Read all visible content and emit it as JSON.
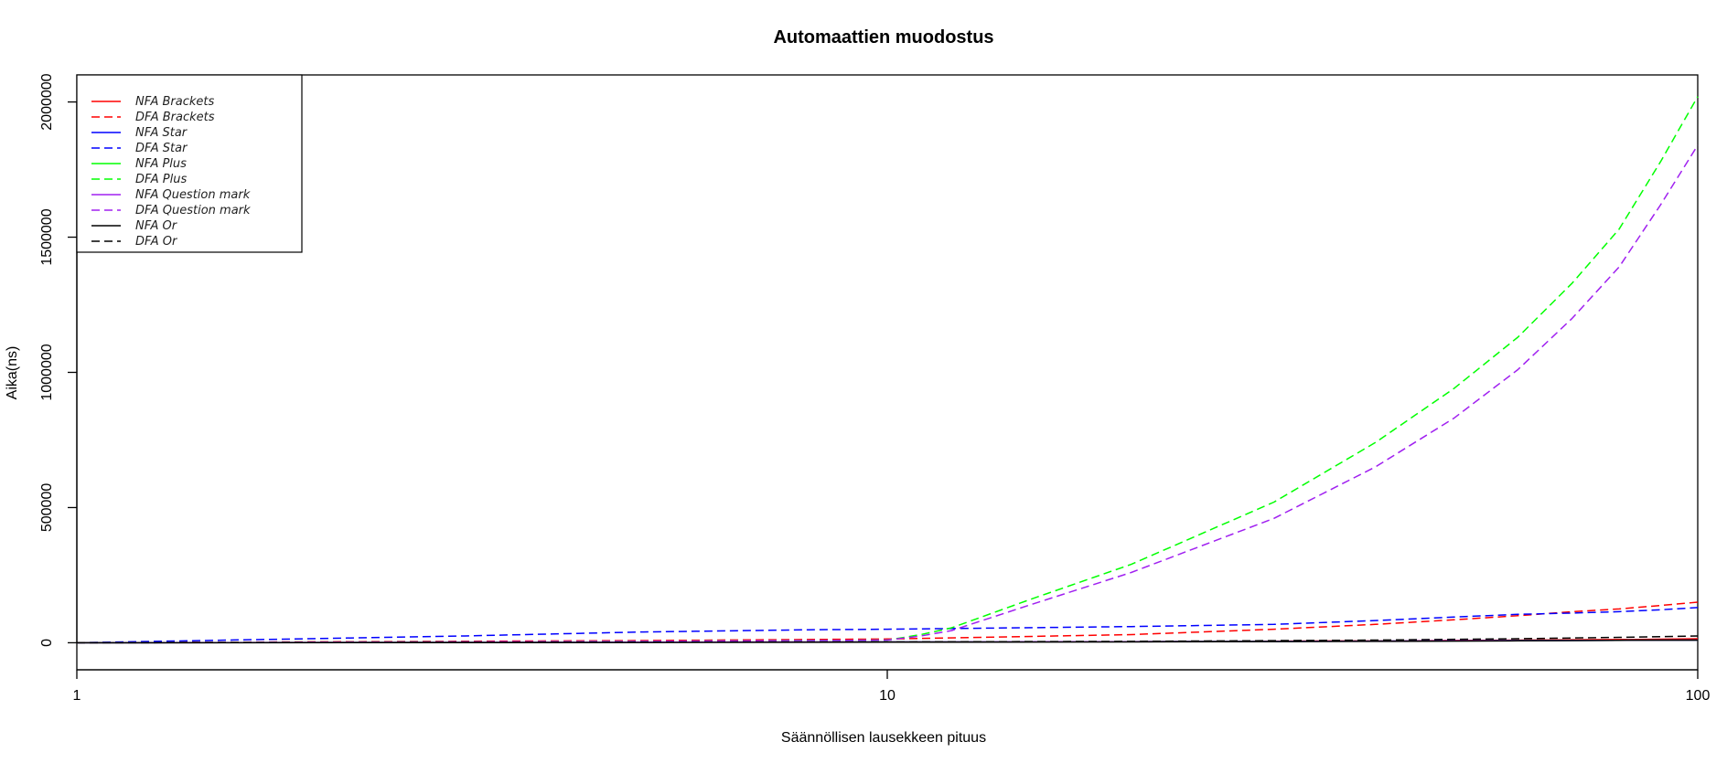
{
  "chart_data": {
    "type": "line",
    "title": "Automaattien muodostus",
    "xlabel": "Säännöllisen lausekkeen pituus",
    "ylabel": "Aika(ns)",
    "xlim": [
      1,
      100
    ],
    "x_scale": "log",
    "ylim": [
      -100000,
      2100000
    ],
    "x_ticks": [
      1,
      10,
      100
    ],
    "y_ticks": [
      0,
      500000,
      1000000,
      1500000,
      2000000
    ],
    "grid": false,
    "legend_position": "top-left",
    "series": [
      {
        "name": "NFA Brackets",
        "color": "#ff0000",
        "dash": "solid",
        "x": [
          1,
          5,
          10,
          20,
          40,
          60,
          80,
          100
        ],
        "y": [
          0,
          2000,
          3000,
          4000,
          7000,
          10000,
          12000,
          15000
        ]
      },
      {
        "name": "DFA Brackets",
        "color": "#ff0000",
        "dash": "dashed",
        "x": [
          1,
          5,
          10,
          20,
          30,
          40,
          50,
          60,
          70,
          80,
          90,
          100
        ],
        "y": [
          0,
          8000,
          14000,
          30000,
          50000,
          68000,
          85000,
          100000,
          115000,
          125000,
          138000,
          150000
        ]
      },
      {
        "name": "NFA Star",
        "color": "#0000ff",
        "dash": "solid",
        "x": [
          1,
          5,
          10,
          20,
          40,
          60,
          80,
          100
        ],
        "y": [
          0,
          2000,
          3000,
          4000,
          6000,
          8000,
          9000,
          10000
        ]
      },
      {
        "name": "DFA Star",
        "color": "#0000ff",
        "dash": "dashed",
        "x": [
          1,
          3,
          5,
          8,
          10,
          20,
          30,
          40,
          50,
          60,
          70,
          80,
          90,
          100
        ],
        "y": [
          0,
          25000,
          40000,
          48000,
          50000,
          60000,
          68000,
          82000,
          95000,
          105000,
          110000,
          115000,
          122000,
          130000
        ]
      },
      {
        "name": "NFA Plus",
        "color": "#00ff00",
        "dash": "solid",
        "x": [
          1,
          5,
          10,
          20,
          40,
          60,
          80,
          100
        ],
        "y": [
          0,
          2000,
          3000,
          4000,
          6000,
          8000,
          9000,
          10000
        ]
      },
      {
        "name": "DFA Plus",
        "color": "#00ff00",
        "dash": "dashed",
        "x": [
          1,
          5,
          10,
          11,
          12,
          15,
          20,
          30,
          40,
          50,
          60,
          70,
          80,
          90,
          100
        ],
        "y": [
          0,
          5000,
          10000,
          30000,
          55000,
          160000,
          290000,
          520000,
          740000,
          940000,
          1130000,
          1330000,
          1530000,
          1780000,
          2020000
        ]
      },
      {
        "name": "NFA Question mark",
        "color": "#a020f0",
        "dash": "solid",
        "x": [
          1,
          5,
          10,
          20,
          40,
          60,
          80,
          100
        ],
        "y": [
          0,
          2000,
          3000,
          4000,
          6000,
          8000,
          9000,
          10000
        ]
      },
      {
        "name": "DFA Question mark",
        "color": "#a020f0",
        "dash": "dashed",
        "x": [
          1,
          5,
          10,
          11,
          12,
          15,
          20,
          30,
          40,
          50,
          60,
          70,
          80,
          90,
          100
        ],
        "y": [
          0,
          5000,
          10000,
          25000,
          45000,
          140000,
          260000,
          460000,
          650000,
          830000,
          1010000,
          1200000,
          1390000,
          1620000,
          1840000
        ]
      },
      {
        "name": "NFA Or",
        "color": "#000000",
        "dash": "solid",
        "x": [
          1,
          5,
          10,
          20,
          40,
          60,
          80,
          100
        ],
        "y": [
          0,
          1000,
          2000,
          3000,
          5000,
          7000,
          9000,
          10000
        ]
      },
      {
        "name": "DFA Or",
        "color": "#000000",
        "dash": "dashed",
        "x": [
          1,
          5,
          10,
          20,
          40,
          60,
          80,
          100
        ],
        "y": [
          0,
          2000,
          3000,
          5000,
          10000,
          15000,
          20000,
          25000
        ]
      }
    ]
  }
}
